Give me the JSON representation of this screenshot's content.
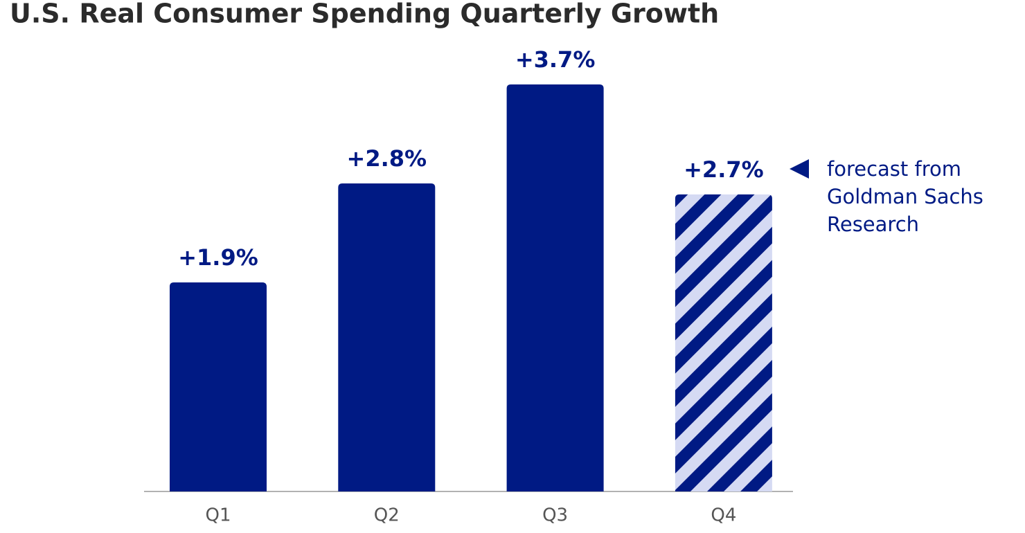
{
  "chart_data": {
    "type": "bar",
    "title": "U.S. Real Consumer Spending Quarterly Growth",
    "categories": [
      "Q1",
      "Q2",
      "Q3",
      "Q4"
    ],
    "values": [
      1.9,
      2.8,
      3.7,
      2.7
    ],
    "value_labels": [
      "+1.9%",
      "+2.8%",
      "+3.7%",
      "+2.7%"
    ],
    "styles": [
      "solid",
      "solid",
      "solid",
      "hatched"
    ],
    "color": "#001a84",
    "hatch_color": "#d5daf3",
    "annotation": [
      "forecast from",
      "Goldman Sachs",
      "Research"
    ]
  }
}
